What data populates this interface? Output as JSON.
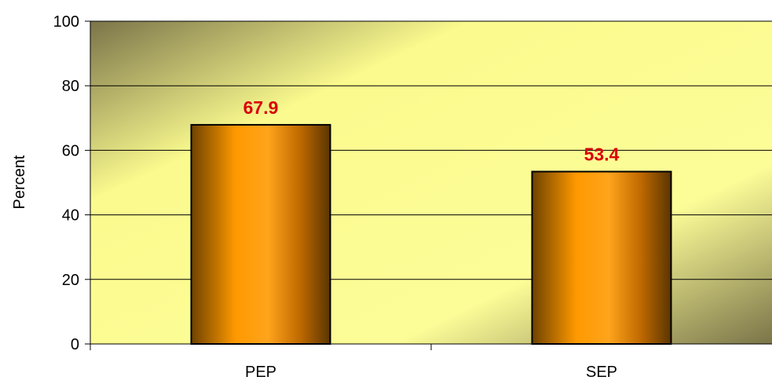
{
  "chart_data": {
    "type": "bar",
    "categories": [
      "PEP",
      "SEP"
    ],
    "values": [
      67.9,
      53.4
    ],
    "data_labels": [
      "67.9",
      "53.4"
    ],
    "title": "",
    "xlabel": "",
    "ylabel": "Percent",
    "ylim": [
      0,
      100
    ],
    "yticks": [
      "0",
      "20",
      "40",
      "60",
      "80",
      "100"
    ],
    "grid": true,
    "legend": "none"
  },
  "colors": {
    "bar_dark": "#6e4200",
    "bar_mid": "#ff9900",
    "bar_light": "#ffa41c",
    "data_label": "#d9000a",
    "plot_bg_dark": "#7a7449",
    "plot_bg_light": "#ffff99",
    "gridline": "#000000"
  }
}
